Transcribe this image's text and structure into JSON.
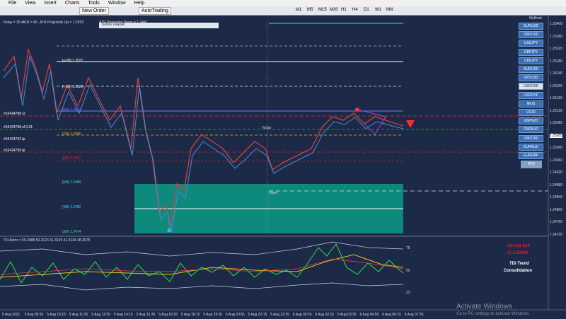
{
  "menu": [
    "File",
    "View",
    "Insert",
    "Charts",
    "Tools",
    "Window",
    "Help"
  ],
  "toolbar": {
    "new_order": "New Order",
    "autotrading": "AutoTrading",
    "timeframes": [
      "M1",
      "M5",
      "M15",
      "M30",
      "H1",
      "H4",
      "D1",
      "W1",
      "MN"
    ]
  },
  "chart": {
    "header": [
      "Today = 25.4",
      "ATR = 66",
      "ATR Projection Up = 1.2553",
      "ATR Projection Down = 1.2447"
    ],
    "news_reader": "news reader",
    "levels": [
      "[+2/8] 1.2527",
      "[+1/8] 1.2520",
      "[8/8] 1.2512",
      "[7/8] 1.2505",
      "[6/8] 1.2497",
      "[5/8] 1.2489",
      "[4/8] 1.2482",
      "[3/8] 1.2474"
    ],
    "orders": [
      "#16424768 sl",
      "#16424768 sl 0.01",
      "#16424763 tp",
      "#16424759 tp"
    ],
    "today": "Today",
    "open": "Open",
    "price_axis": [
      "1.25400",
      "1.25360",
      "1.25320",
      "1.25280",
      "1.25240",
      "1.25200",
      "1.25160",
      "1.25120",
      "1.25080",
      "1.25055",
      "1.25000",
      "1.24960",
      "1.24920",
      "1.24880",
      "1.24840",
      "1.24800",
      "1.24760",
      "1.24720"
    ],
    "time_axis": [
      "5 Aug 2021",
      "5 Aug 08:55",
      "5 Aug 10:15",
      "5 Aug 11:35",
      "5 Aug 12:55",
      "5 Aug 14:15",
      "5 Aug 15:35",
      "5 Aug 16:55",
      "5 Aug 18:15",
      "5 Aug 19:35",
      "5 Aug 20:55",
      "5 Aug 22:15",
      "5 Aug 23:35",
      "6 Aug 00:55",
      "6 Aug 02:15",
      "6 Aug 03:35",
      "6 Aug 04:55",
      "6 Aug 06:15",
      "6 Aug 07:35"
    ]
  },
  "symbols": {
    "title": "MyBook",
    "items": [
      "EURUSD",
      "GBPUSD",
      "USDJPY",
      "GBPJPY",
      "CADJPY",
      "AUDUSD",
      "NZDUSD",
      "USDCAD",
      "USDCHF",
      "NKIS",
      "US30",
      "GBPNZD",
      "GBPAUD",
      "GBPCAD",
      "EURAUD",
      "EURGBP"
    ],
    "selected": 7,
    "atr": "ATR"
  },
  "indicator": {
    "title": "TDI Alerts v 59.2688 50.2023 41.3139 41.9134 48.2678",
    "levels": [
      "75",
      "50",
      "23"
    ],
    "signal": "Strong Sell",
    "signal_price": "@ 1.25065",
    "trend_label": "TDI Trend",
    "trend": "Consolidation"
  },
  "watermark": {
    "title": "Activate Windows",
    "text": "Go to PC settings to activate Windows."
  }
}
